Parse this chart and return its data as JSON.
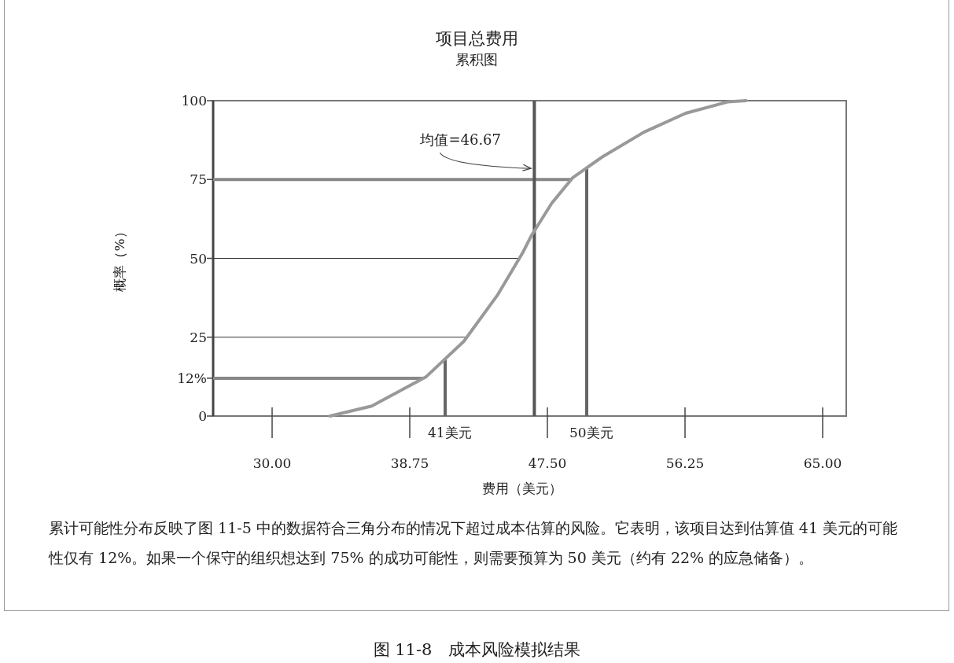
{
  "chart_data": {
    "type": "line",
    "title": "项目总费用",
    "subtitle": "累积图",
    "xlabel": "费用（美元）",
    "ylabel": "概率（%）",
    "xlim": [
      26.25,
      66.5
    ],
    "ylim": [
      0,
      100
    ],
    "xticks": [
      {
        "value": 30,
        "label": "30.00"
      },
      {
        "value": 38.75,
        "label": "38.75"
      },
      {
        "value": 47.5,
        "label": "47.50"
      },
      {
        "value": 56.25,
        "label": "56.25"
      },
      {
        "value": 65,
        "label": "65.00"
      }
    ],
    "yticks": [
      0,
      {
        "value": 12,
        "label": "12%"
      },
      25,
      50,
      75,
      100
    ],
    "series": [
      {
        "color": "#999999",
        "x": [
          33.68,
          36.34,
          39.8,
          42.19,
          44.32,
          45.91,
          46.45,
          47.78,
          49.1,
          50.97,
          53.63,
          56.29,
          58.95,
          60.14
        ],
        "values": [
          0,
          3.2,
          12.5,
          23.7,
          38.3,
          51.6,
          56.9,
          67.5,
          75.5,
          82.1,
          90.0,
          96.0,
          99.6,
          100
        ]
      }
    ],
    "ref_lines": [
      {
        "axis": "y",
        "value": 12,
        "label": null,
        "color": "#888888"
      },
      {
        "axis": "y",
        "value": 25,
        "label": null,
        "color": "#333333"
      },
      {
        "axis": "y",
        "value": 50,
        "label": null,
        "color": "#333333"
      },
      {
        "axis": "y",
        "value": 75,
        "label": null,
        "color": "#888888"
      },
      {
        "axis": "x",
        "value": 41,
        "label": "41美元",
        "color": "#666666"
      },
      {
        "axis": "x",
        "value": 46.67,
        "label": null,
        "color": "#555555"
      },
      {
        "axis": "x",
        "value": 50,
        "label": "50美元",
        "color": "#666666"
      }
    ],
    "annotations": [
      {
        "text": "均值=46.67",
        "x": 46.67,
        "y": 80
      },
      "累计可能性分布反映了图 11-5 中的数据符合三角分布的情况下超过成本估算的风险。它表明，该项目达到估算值 41 美元的可能性仅有 12%。如果一个保守的组织想达到 75% 的成功可能性，则需要预算为 50 美元（约有 22% 的应急储备）。",
      "图 11-8　成本风险模拟结果"
    ],
    "grid": false,
    "marker": "none",
    "line_style": "solid"
  }
}
